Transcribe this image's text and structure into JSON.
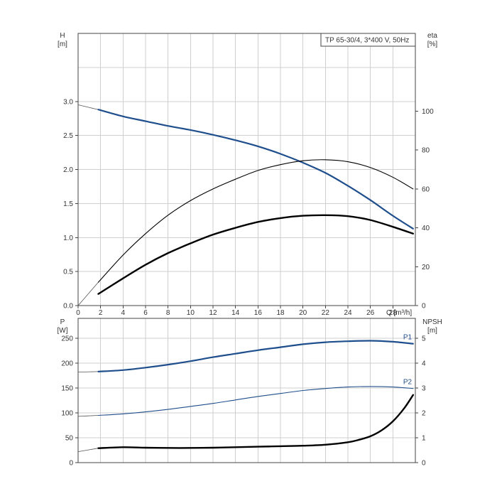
{
  "chart_data": [
    {
      "type": "line",
      "title": "TP 65-30/4, 3*400 V, 50Hz",
      "y_left_label": [
        "H",
        "[m]"
      ],
      "y_right_label": [
        "eta",
        "[%]"
      ],
      "xlabel": "Q [m³/h]",
      "xlim": [
        0,
        30
      ],
      "ylim_left": [
        0,
        4
      ],
      "ylim_right": [
        0,
        140
      ],
      "x_ticks": [
        "0",
        "2",
        "4",
        "6",
        "8",
        "10",
        "12",
        "14",
        "16",
        "18",
        "20",
        "22",
        "24",
        "26",
        "28"
      ],
      "y_left_ticks": [
        "0.0",
        "0.5",
        "1.0",
        "1.5",
        "2.0",
        "2.5",
        "3.0"
      ],
      "y_right_ticks": [
        "0",
        "20",
        "40",
        "60",
        "80",
        "100"
      ],
      "series": [
        {
          "key": "H",
          "axis": "left",
          "color": "#1f4e8c",
          "width": 2.2,
          "x": [
            1.8,
            4,
            6,
            8,
            10,
            12,
            14,
            16,
            18,
            20,
            22,
            24,
            26,
            28,
            29.8
          ],
          "y": [
            2.88,
            2.78,
            2.71,
            2.64,
            2.58,
            2.51,
            2.43,
            2.34,
            2.23,
            2.1,
            1.95,
            1.76,
            1.55,
            1.32,
            1.13
          ],
          "thin_extension": {
            "x": [
              0,
              1.8
            ],
            "y": [
              2.95,
              2.88
            ]
          }
        },
        {
          "key": "eta",
          "axis": "right",
          "color": "#000000",
          "width": 1.1,
          "x": [
            1.8,
            4,
            6,
            8,
            10,
            12,
            14,
            16,
            18,
            20,
            22,
            24,
            26,
            28,
            29.8
          ],
          "y": [
            12,
            26,
            37,
            46.5,
            54,
            60,
            65,
            69.5,
            72.5,
            74.5,
            75,
            74,
            71,
            66,
            60
          ],
          "thin_extension": {
            "x": [
              0,
              1.8
            ],
            "y": [
              0,
              12
            ]
          }
        },
        {
          "key": "eta-pump",
          "axis": "right",
          "color": "#000000",
          "width": 2.4,
          "x": [
            1.8,
            4,
            6,
            8,
            10,
            12,
            14,
            16,
            18,
            20,
            22,
            24,
            26,
            28,
            29.8
          ],
          "y": [
            6,
            14,
            21,
            27,
            32,
            36.5,
            40,
            43,
            45,
            46.2,
            46.5,
            46,
            44,
            40.5,
            37
          ]
        }
      ]
    },
    {
      "type": "line",
      "y_left_label": [
        "P",
        "[W]"
      ],
      "y_right_label": [
        "NPSH",
        "[m]"
      ],
      "xlim": [
        0,
        30
      ],
      "ylim_left": [
        0,
        290
      ],
      "ylim_right": [
        0,
        5.8
      ],
      "y_left_ticks": [
        "0",
        "50",
        "100",
        "150",
        "200",
        "250"
      ],
      "y_right_ticks": [
        "0",
        "1",
        "2",
        "3",
        "4",
        "5"
      ],
      "series": [
        {
          "name": "P1",
          "axis": "left",
          "color": "#1f4e8c",
          "width": 2.2,
          "x": [
            1.8,
            4,
            6,
            8,
            10,
            12,
            14,
            16,
            18,
            20,
            22,
            24,
            26,
            28,
            29.8
          ],
          "y": [
            183,
            186,
            191,
            197,
            204,
            212,
            219,
            226,
            232,
            238,
            242,
            244,
            245,
            243,
            239
          ],
          "thin_extension": {
            "x": [
              0,
              1.8
            ],
            "y": [
              182,
              183
            ]
          }
        },
        {
          "name": "P2",
          "axis": "left",
          "color": "#1f4e8c",
          "width": 1.1,
          "x": [
            1.8,
            4,
            6,
            8,
            10,
            12,
            14,
            16,
            18,
            20,
            22,
            24,
            26,
            28,
            29.8
          ],
          "y": [
            95,
            98,
            102,
            107,
            113,
            119,
            126,
            133,
            139,
            145,
            149,
            152,
            153,
            152,
            149
          ],
          "thin_extension": {
            "x": [
              0,
              1.8
            ],
            "y": [
              93,
              95
            ]
          }
        },
        {
          "key": "NPSH",
          "axis": "right",
          "color": "#000000",
          "width": 2.4,
          "x": [
            1.8,
            4,
            6,
            8,
            10,
            12,
            14,
            16,
            18,
            20,
            22,
            24,
            25,
            26,
            27,
            28,
            29,
            29.8
          ],
          "y": [
            0.58,
            0.62,
            0.6,
            0.59,
            0.59,
            0.6,
            0.62,
            0.64,
            0.66,
            0.68,
            0.72,
            0.82,
            0.92,
            1.06,
            1.3,
            1.66,
            2.18,
            2.72
          ],
          "thin_extension": {
            "x": [
              0,
              1.8
            ],
            "y": [
              0.44,
              0.58
            ]
          }
        }
      ]
    }
  ]
}
